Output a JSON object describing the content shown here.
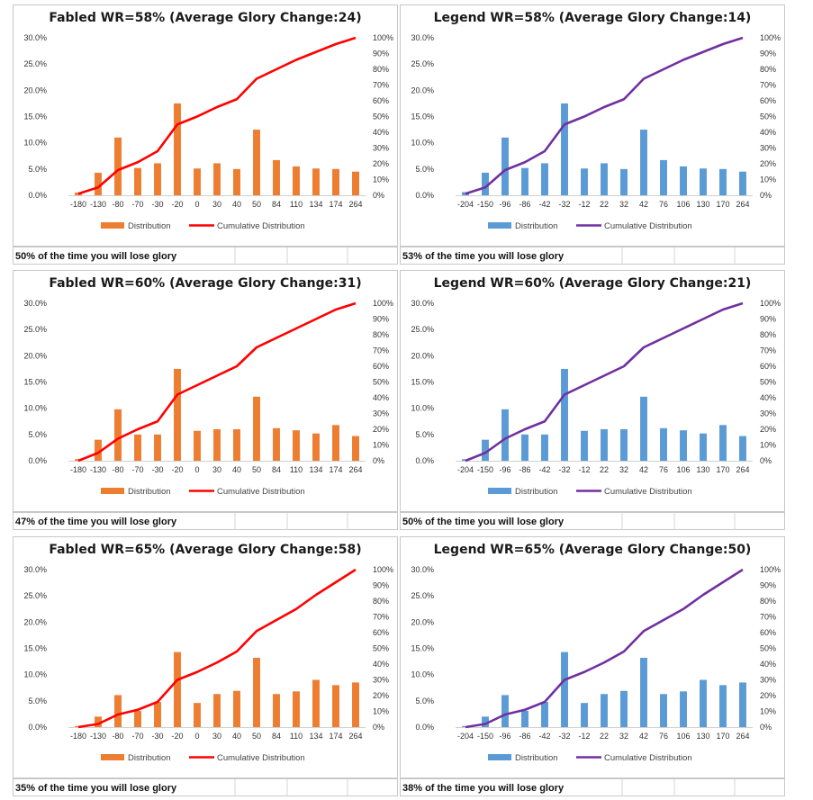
{
  "colors": {
    "fabled_bar": "#ED7D31",
    "fabled_line": "#FF0000",
    "legend_bar": "#5B9BD5",
    "legend_line": "#7030A0"
  },
  "chart_data": [
    {
      "type": "bar",
      "title": "Fabled WR=58% (Average Glory Change:24)",
      "categories": [
        "-180",
        "-130",
        "-80",
        "-70",
        "-30",
        "-20",
        "0",
        "30",
        "40",
        "50",
        "84",
        "110",
        "134",
        "174",
        "264"
      ],
      "series": [
        {
          "name": "Distribution",
          "type": "bar",
          "axis": "left",
          "values": [
            0.5,
            4.3,
            11.0,
            5.2,
            6.1,
            17.5,
            5.1,
            6.1,
            5.0,
            12.5,
            6.7,
            5.5,
            5.1,
            5.0,
            4.5
          ]
        },
        {
          "name": "Cumulative Distribution",
          "type": "line",
          "axis": "right",
          "values": [
            1,
            5,
            16,
            21,
            28,
            45,
            50,
            56,
            61,
            74,
            80,
            86,
            91,
            96,
            100
          ]
        }
      ],
      "ylim": [
        0,
        30
      ],
      "y_ticks": [
        "0.0%",
        "5.0%",
        "10.0%",
        "15.0%",
        "20.0%",
        "25.0%",
        "30.0%"
      ],
      "y2lim": [
        0,
        100
      ],
      "y2_ticks": [
        "0%",
        "10%",
        "20%",
        "30%",
        "40%",
        "50%",
        "60%",
        "70%",
        "80%",
        "90%",
        "100%"
      ],
      "legend": "bottom",
      "note": "50% of the time you will lose glory",
      "palette": "fabled"
    },
    {
      "type": "bar",
      "title": "Legend WR=58% (Average Glory Change:14)",
      "categories": [
        "-204",
        "-150",
        "-96",
        "-86",
        "-42",
        "-32",
        "-12",
        "22",
        "32",
        "42",
        "76",
        "106",
        "130",
        "170",
        "264"
      ],
      "series": [
        {
          "name": "Distribution",
          "type": "bar",
          "axis": "left",
          "values": [
            0.6,
            4.3,
            11.0,
            5.2,
            6.1,
            17.5,
            5.1,
            6.1,
            5.0,
            12.5,
            6.7,
            5.5,
            5.1,
            5.0,
            4.5
          ]
        },
        {
          "name": "Cumulative Distribution",
          "type": "line",
          "axis": "right",
          "values": [
            1,
            5,
            16,
            21,
            28,
            45,
            50,
            56,
            61,
            74,
            80,
            86,
            91,
            96,
            100
          ]
        }
      ],
      "ylim": [
        0,
        30
      ],
      "y_ticks": [
        "0.0%",
        "5.0%",
        "10.0%",
        "15.0%",
        "20.0%",
        "25.0%",
        "30.0%"
      ],
      "y2lim": [
        0,
        100
      ],
      "y2_ticks": [
        "0%",
        "10%",
        "20%",
        "30%",
        "40%",
        "50%",
        "60%",
        "70%",
        "80%",
        "90%",
        "100%"
      ],
      "legend": "bottom",
      "note": "53% of the time you will lose glory",
      "palette": "legend"
    },
    {
      "type": "bar",
      "title": "Fabled WR=60% (Average Glory Change:31)",
      "categories": [
        "-180",
        "-130",
        "-80",
        "-70",
        "-30",
        "-20",
        "0",
        "30",
        "40",
        "50",
        "84",
        "110",
        "134",
        "174",
        "264"
      ],
      "series": [
        {
          "name": "Distribution",
          "type": "bar",
          "axis": "left",
          "values": [
            0.3,
            4.0,
            9.8,
            5.0,
            5.0,
            17.5,
            5.7,
            6.0,
            6.0,
            12.2,
            6.2,
            5.8,
            5.2,
            6.8,
            4.7
          ]
        },
        {
          "name": "Cumulative Distribution",
          "type": "line",
          "axis": "right",
          "values": [
            0,
            5,
            14,
            20,
            25,
            42,
            48,
            54,
            60,
            72,
            78,
            84,
            90,
            96,
            100
          ]
        }
      ],
      "ylim": [
        0,
        30
      ],
      "y_ticks": [
        "0.0%",
        "5.0%",
        "10.0%",
        "15.0%",
        "20.0%",
        "25.0%",
        "30.0%"
      ],
      "y2lim": [
        0,
        100
      ],
      "y2_ticks": [
        "0%",
        "10%",
        "20%",
        "30%",
        "40%",
        "50%",
        "60%",
        "70%",
        "80%",
        "90%",
        "100%"
      ],
      "legend": "bottom",
      "note": "47% of the time you will lose glory",
      "palette": "fabled"
    },
    {
      "type": "bar",
      "title": "Legend WR=60% (Average Glory Change:21)",
      "categories": [
        "-204",
        "-150",
        "-96",
        "-86",
        "-42",
        "-32",
        "-12",
        "22",
        "32",
        "42",
        "76",
        "106",
        "130",
        "170",
        "264"
      ],
      "series": [
        {
          "name": "Distribution",
          "type": "bar",
          "axis": "left",
          "values": [
            0.3,
            4.0,
            9.8,
            5.0,
            5.0,
            17.5,
            5.7,
            6.0,
            6.0,
            12.2,
            6.2,
            5.8,
            5.2,
            6.8,
            4.7
          ]
        },
        {
          "name": "Cumulative Distribution",
          "type": "line",
          "axis": "right",
          "values": [
            0,
            5,
            14,
            20,
            25,
            42,
            48,
            54,
            60,
            72,
            78,
            84,
            90,
            96,
            100
          ]
        }
      ],
      "ylim": [
        0,
        30
      ],
      "y_ticks": [
        "0.0%",
        "5.0%",
        "10.0%",
        "15.0%",
        "20.0%",
        "25.0%",
        "30.0%"
      ],
      "y2lim": [
        0,
        100
      ],
      "y2_ticks": [
        "0%",
        "10%",
        "20%",
        "30%",
        "40%",
        "50%",
        "60%",
        "70%",
        "80%",
        "90%",
        "100%"
      ],
      "legend": "bottom",
      "note": "50% of the time you will lose glory",
      "palette": "legend"
    },
    {
      "type": "bar",
      "title": "Fabled WR=65% (Average Glory Change:58)",
      "categories": [
        "-180",
        "-130",
        "-80",
        "-70",
        "-30",
        "-20",
        "0",
        "30",
        "40",
        "50",
        "84",
        "110",
        "134",
        "174",
        "264"
      ],
      "series": [
        {
          "name": "Distribution",
          "type": "bar",
          "axis": "left",
          "values": [
            0.2,
            2.0,
            6.1,
            3.1,
            4.8,
            14.3,
            4.6,
            6.3,
            6.9,
            13.2,
            6.3,
            6.8,
            9.0,
            8.0,
            8.5
          ]
        },
        {
          "name": "Cumulative Distribution",
          "type": "line",
          "axis": "right",
          "values": [
            0,
            2,
            8,
            11,
            16,
            30,
            35,
            41,
            48,
            61,
            68,
            75,
            84,
            92,
            100
          ]
        }
      ],
      "ylim": [
        0,
        30
      ],
      "y_ticks": [
        "0.0%",
        "5.0%",
        "10.0%",
        "15.0%",
        "20.0%",
        "25.0%",
        "30.0%"
      ],
      "y2lim": [
        0,
        100
      ],
      "y2_ticks": [
        "0%",
        "10%",
        "20%",
        "30%",
        "40%",
        "50%",
        "60%",
        "70%",
        "80%",
        "90%",
        "100%"
      ],
      "legend": "bottom",
      "note": "35% of the time you will lose glory",
      "palette": "fabled"
    },
    {
      "type": "bar",
      "title": "Legend WR=65% (Average Glory Change:50)",
      "categories": [
        "-204",
        "-150",
        "-96",
        "-86",
        "-42",
        "-32",
        "-12",
        "22",
        "32",
        "42",
        "76",
        "106",
        "130",
        "170",
        "264"
      ],
      "series": [
        {
          "name": "Distribution",
          "type": "bar",
          "axis": "left",
          "values": [
            0.2,
            2.0,
            6.1,
            3.1,
            4.8,
            14.3,
            4.6,
            6.3,
            6.9,
            13.2,
            6.3,
            6.8,
            9.0,
            8.0,
            8.5
          ]
        },
        {
          "name": "Cumulative Distribution",
          "type": "line",
          "axis": "right",
          "values": [
            0,
            2,
            8,
            11,
            16,
            30,
            35,
            41,
            48,
            61,
            68,
            75,
            84,
            92,
            100
          ]
        }
      ],
      "ylim": [
        0,
        30
      ],
      "y_ticks": [
        "0.0%",
        "5.0%",
        "10.0%",
        "15.0%",
        "20.0%",
        "25.0%",
        "30.0%"
      ],
      "y2lim": [
        0,
        100
      ],
      "y2_ticks": [
        "0%",
        "10%",
        "20%",
        "30%",
        "40%",
        "50%",
        "60%",
        "70%",
        "80%",
        "90%",
        "100%"
      ],
      "legend": "bottom",
      "note": "38% of the time you will lose glory",
      "palette": "legend"
    }
  ]
}
